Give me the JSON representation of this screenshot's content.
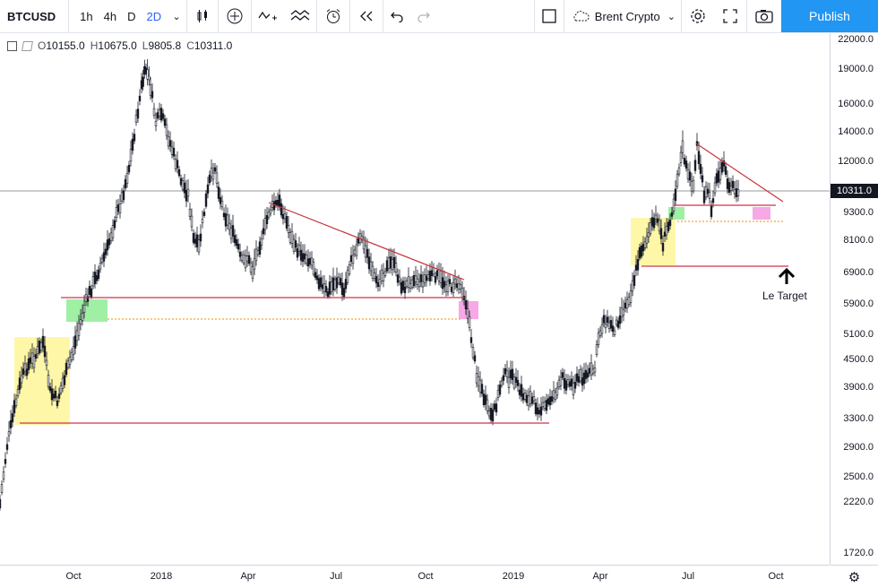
{
  "toolbar": {
    "symbol": "BTCUSD",
    "intervals": [
      {
        "label": "1h",
        "active": false
      },
      {
        "label": "4h",
        "active": false
      },
      {
        "label": "D",
        "active": false
      },
      {
        "label": "2D",
        "active": true
      }
    ],
    "template_name": "Brent Crypto",
    "publish_label": "Publish",
    "icons": [
      "chevron-down-icon",
      "candles-icon",
      "plus-circle-icon",
      "indicator-icon",
      "compare-icon",
      "alert-icon",
      "replay-icon",
      "undo-icon",
      "redo-icon",
      "layout-icon",
      "cloud-icon",
      "gear-icon",
      "fullscreen-icon",
      "camera-icon"
    ]
  },
  "legend": {
    "open_key": "O",
    "open": "10155.0",
    "high_key": "H",
    "high": "10675.0",
    "low_key": "L",
    "low": "9805.8",
    "close_key": "C",
    "close": "10311.0"
  },
  "price_axis": {
    "ticks": [
      "22000.0",
      "19000.0",
      "16000.0",
      "14000.0",
      "12000.0",
      "10311.0",
      "9300.0",
      "8100.0",
      "6900.0",
      "5900.0",
      "5100.0",
      "4500.0",
      "3900.0",
      "3300.0",
      "2900.0",
      "2500.0",
      "2220.0",
      "1720.0"
    ],
    "tick_values": [
      22000,
      19000,
      16000,
      14000,
      12000,
      9300,
      8100,
      6900,
      5900,
      5100,
      4500,
      3900,
      3300,
      2900,
      2500,
      2220,
      1720
    ],
    "current_price": "10311.0",
    "current_value": 10311
  },
  "time_axis": {
    "ticks": [
      "Oct",
      "2018",
      "Apr",
      "Jul",
      "Oct",
      "2019",
      "Apr",
      "Jul",
      "Oct"
    ]
  },
  "annotations": {
    "target_label": "Le Target"
  },
  "colors": {
    "candle": "#131722",
    "trend_line": "#c7353b",
    "support_line": "#d0314a",
    "dotted_line": "#f0a830",
    "zone_yellow": "#fff7a8",
    "zone_green": "#9ff0a4",
    "zone_pink": "#f7a8e6",
    "accent": "#2196f3"
  }
}
